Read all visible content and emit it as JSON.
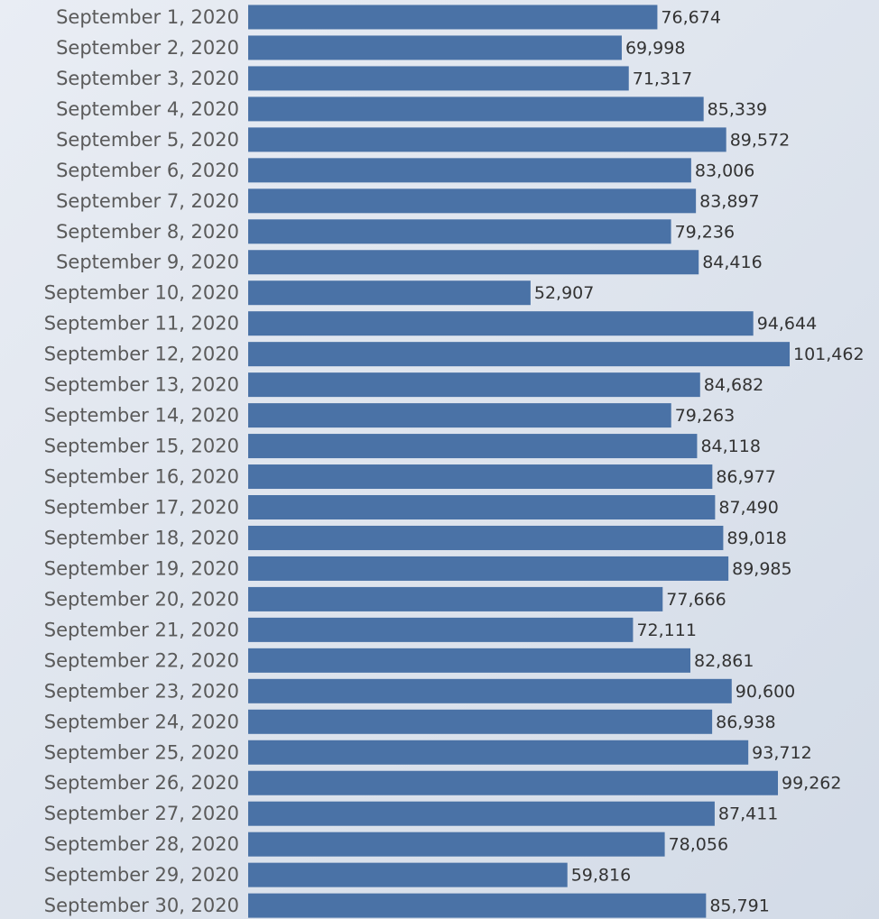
{
  "chart_data": {
    "type": "bar",
    "orientation": "horizontal",
    "color": "#4a72a6",
    "categories": [
      "September 1, 2020",
      "September 2, 2020",
      "September 3, 2020",
      "September 4, 2020",
      "September 5, 2020",
      "September 6, 2020",
      "September 7, 2020",
      "September 8, 2020",
      "September 9, 2020",
      "September 10, 2020",
      "September 11, 2020",
      "September 12, 2020",
      "September 13, 2020",
      "September 14, 2020",
      "September 15, 2020",
      "September 16, 2020",
      "September 17, 2020",
      "September 18, 2020",
      "September 19, 2020",
      "September 20, 2020",
      "September 21, 2020",
      "September 22, 2020",
      "September 23, 2020",
      "September 24, 2020",
      "September 25, 2020",
      "September 26, 2020",
      "September 27, 2020",
      "September 28, 2020",
      "September 29, 2020",
      "September 30, 2020"
    ],
    "values": [
      76674,
      69998,
      71317,
      85339,
      89572,
      83006,
      83897,
      79236,
      84416,
      52907,
      94644,
      101462,
      84682,
      79263,
      84118,
      86977,
      87490,
      89018,
      89985,
      77666,
      72111,
      82861,
      90600,
      86938,
      93712,
      99262,
      87411,
      78056,
      59816,
      85791
    ],
    "value_labels": [
      "76,674",
      "69,998",
      "71,317",
      "85,339",
      "89,572",
      "83,006",
      "83,897",
      "79,236",
      "84,416",
      "52,907",
      "94,644",
      "101,462",
      "84,682",
      "79,263",
      "84,118",
      "86,977",
      "87,490",
      "89,018",
      "89,985",
      "77,666",
      "72,111",
      "82,861",
      "90,600",
      "86,938",
      "93,712",
      "99,262",
      "87,411",
      "78,056",
      "59,816",
      "85,791"
    ],
    "xlim": [
      0,
      110000
    ]
  }
}
